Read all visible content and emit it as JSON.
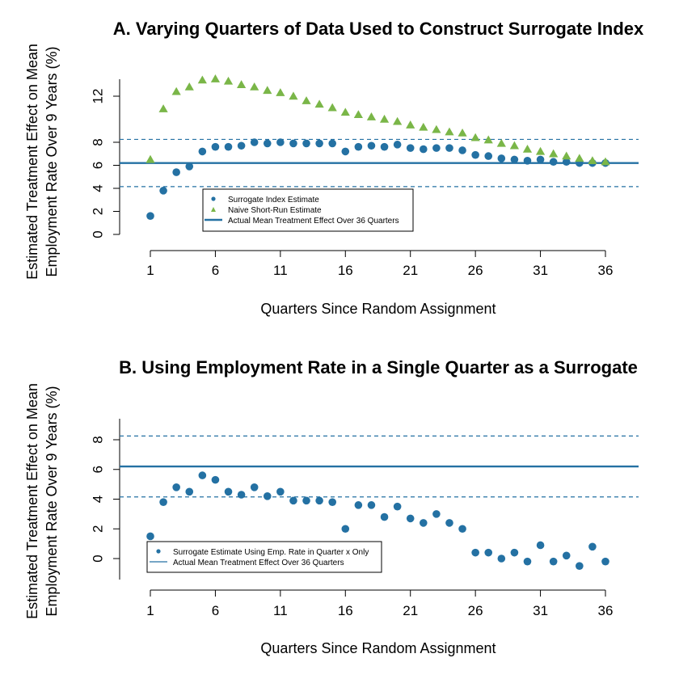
{
  "colors": {
    "surrogate": "#2471a3",
    "naive": "#7ab648",
    "actual": "#2471a3",
    "ci": "#2471a3",
    "axis": "#000000"
  },
  "ylabel_line1": "Estimated Treatment Effect on Mean",
  "ylabel_line2": "Employment Rate Over 9 Years (%)",
  "chart_data": [
    {
      "type": "scatter",
      "title": "A. Varying Quarters of Data Used to Construct Surrogate Index",
      "xlabel": "Quarters Since Random Assignment",
      "ylabel": "Estimated Treatment Effect on Mean Employment Rate Over 9 Years (%)",
      "xlim": [
        1,
        36
      ],
      "x_ticks": [
        1,
        6,
        11,
        16,
        21,
        26,
        31,
        36
      ],
      "ylim": [
        -0.4,
        13.5
      ],
      "y_ticks": [
        0,
        2,
        4,
        6,
        8,
        12
      ],
      "x": [
        1,
        2,
        3,
        4,
        5,
        6,
        7,
        8,
        9,
        10,
        11,
        12,
        13,
        14,
        15,
        16,
        17,
        18,
        19,
        20,
        21,
        22,
        23,
        24,
        25,
        26,
        27,
        28,
        29,
        30,
        31,
        32,
        33,
        34,
        35,
        36
      ],
      "series": [
        {
          "name": "Surrogate Index Estimate",
          "marker": "circle",
          "values": [
            1.6,
            3.8,
            5.4,
            5.9,
            7.2,
            7.6,
            7.6,
            7.7,
            8.0,
            7.9,
            8.0,
            7.9,
            7.9,
            7.9,
            7.9,
            7.2,
            7.6,
            7.7,
            7.6,
            7.8,
            7.5,
            7.4,
            7.5,
            7.5,
            7.3,
            6.9,
            6.8,
            6.6,
            6.5,
            6.4,
            6.5,
            6.3,
            6.3,
            6.2,
            6.2,
            6.2
          ]
        },
        {
          "name": "Naive Short-Run Estimate",
          "marker": "triangle",
          "values": [
            6.5,
            10.9,
            12.4,
            12.8,
            13.4,
            13.5,
            13.3,
            13.0,
            12.8,
            12.5,
            12.3,
            12.0,
            11.6,
            11.3,
            11.0,
            10.6,
            10.4,
            10.2,
            10.0,
            9.8,
            9.5,
            9.3,
            9.1,
            8.9,
            8.8,
            8.4,
            8.2,
            7.9,
            7.7,
            7.4,
            7.2,
            7.0,
            6.8,
            6.6,
            6.4,
            6.3
          ]
        }
      ],
      "reference_lines": {
        "actual": {
          "name": "Actual Mean Treatment Effect Over 36 Quarters",
          "value": 6.2
        },
        "upper_dashed": 8.25,
        "lower_dashed": 4.15
      },
      "legend_position": "center-left"
    },
    {
      "type": "scatter",
      "title": "B. Using Employment Rate in a Single Quarter as a Surrogate",
      "xlabel": "Quarters Since Random Assignment",
      "ylabel": "Estimated Treatment Effect on Mean Employment Rate Over 9 Years (%)",
      "xlim": [
        1,
        36
      ],
      "x_ticks": [
        1,
        6,
        11,
        16,
        21,
        26,
        31,
        36
      ],
      "ylim": [
        -1.4,
        9.5
      ],
      "y_ticks": [
        0,
        2,
        4,
        6,
        8
      ],
      "x": [
        1,
        2,
        3,
        4,
        5,
        6,
        7,
        8,
        9,
        10,
        11,
        12,
        13,
        14,
        15,
        16,
        17,
        18,
        19,
        20,
        21,
        22,
        23,
        24,
        25,
        26,
        27,
        28,
        29,
        30,
        31,
        32,
        33,
        34,
        35,
        36
      ],
      "series": [
        {
          "name": "Surrogate Estimate Using Emp. Rate in Quarter x Only",
          "marker": "circle",
          "values": [
            1.5,
            3.8,
            4.8,
            4.5,
            5.6,
            5.3,
            4.5,
            4.3,
            4.8,
            4.2,
            4.5,
            3.9,
            3.9,
            3.9,
            3.8,
            2.0,
            3.6,
            3.6,
            2.8,
            3.5,
            2.7,
            2.4,
            3.0,
            2.4,
            2.0,
            0.4,
            0.4,
            0.0,
            0.4,
            -0.2,
            0.9,
            -0.2,
            0.2,
            -0.5,
            0.8,
            -0.2
          ]
        }
      ],
      "reference_lines": {
        "actual": {
          "name": "Actual Mean Treatment Effect Over 36 Quarters",
          "value": 6.2
        },
        "upper_dashed": 8.25,
        "lower_dashed": 4.15
      },
      "legend_position": "bottom-left"
    }
  ]
}
